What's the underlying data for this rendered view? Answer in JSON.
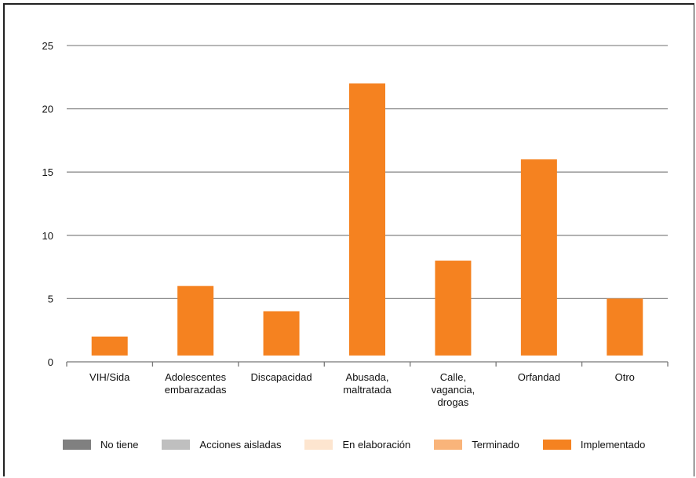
{
  "chart_data": {
    "type": "bar",
    "categories": [
      [
        "VIH/Sida"
      ],
      [
        "Adolescentes",
        "embarazadas"
      ],
      [
        "Discapacidad"
      ],
      [
        "Abusada,",
        "maltratada"
      ],
      [
        "Calle,",
        "vagancia,",
        "drogas"
      ],
      [
        "Orfandad"
      ],
      [
        "Otro"
      ]
    ],
    "series": [
      {
        "name": "No tiene",
        "color": "#808080",
        "values": [
          0,
          0,
          0,
          0,
          0,
          0,
          0
        ]
      },
      {
        "name": "Acciones aisladas",
        "color": "#bfbfbf",
        "values": [
          0,
          0,
          0,
          0,
          0,
          0,
          0
        ]
      },
      {
        "name": "En elaboración",
        "color": "#fde5cf",
        "values": [
          0,
          0,
          0,
          0,
          0,
          0,
          0
        ]
      },
      {
        "name": "Terminado",
        "color": "#f9b47a",
        "values": [
          0,
          0,
          0,
          0,
          0,
          0,
          0
        ]
      },
      {
        "name": "Implementado",
        "color": "#f58220",
        "values": [
          1.5,
          5.5,
          3.5,
          21.5,
          7.5,
          15.5,
          4.5
        ]
      }
    ],
    "yticks": [
      0,
      5,
      10,
      15,
      20,
      25
    ],
    "ylim": [
      0,
      25
    ],
    "grid": true,
    "legend_position": "bottom"
  }
}
